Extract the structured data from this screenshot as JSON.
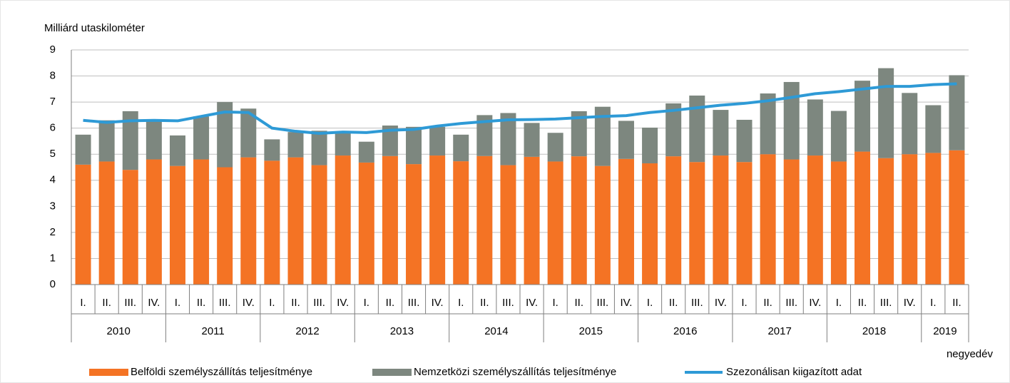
{
  "chart_data": {
    "type": "stacked-bar-line",
    "y_axis_label": "Milliárd utaskilométer",
    "x_axis_label": "negyedév",
    "categories": [
      "I.",
      "II.",
      "III.",
      "IV.",
      "I.",
      "II.",
      "III.",
      "IV.",
      "I.",
      "II.",
      "III.",
      "IV.",
      "I.",
      "II.",
      "III.",
      "IV.",
      "I.",
      "II.",
      "III.",
      "IV.",
      "I.",
      "II.",
      "III.",
      "IV.",
      "I.",
      "II.",
      "III.",
      "IV.",
      "I.",
      "II.",
      "III.",
      "IV.",
      "I.",
      "II.",
      "III.",
      "IV.",
      "I.",
      "II."
    ],
    "years": [
      "2010",
      "2011",
      "2012",
      "2013",
      "2014",
      "2015",
      "2016",
      "2017",
      "2018",
      "2019"
    ],
    "ylim": [
      0,
      9
    ],
    "yticks": [
      0,
      1,
      2,
      3,
      4,
      5,
      6,
      7,
      8,
      9
    ],
    "grid": true,
    "series": [
      {
        "name": "Belföldi személyszállítás teljesítménye",
        "color": "#f47324",
        "kind": "bar",
        "values": [
          4.6,
          4.72,
          4.4,
          4.8,
          4.55,
          4.8,
          4.5,
          4.88,
          4.75,
          4.88,
          4.58,
          4.95,
          4.68,
          4.93,
          4.62,
          4.95,
          4.73,
          4.93,
          4.58,
          4.9,
          4.72,
          4.92,
          4.55,
          4.82,
          4.65,
          4.92,
          4.7,
          4.95,
          4.7,
          5.0,
          4.8,
          4.95,
          4.72,
          5.1,
          4.85,
          5.0,
          5.05,
          5.15
        ]
      },
      {
        "name": "Nemzetközi személyszállítás teljesítménye",
        "color": "#7d877f",
        "kind": "bar",
        "values": [
          1.15,
          1.58,
          2.25,
          1.48,
          1.17,
          1.65,
          2.5,
          1.87,
          0.82,
          0.97,
          1.32,
          0.9,
          0.8,
          1.17,
          1.43,
          1.1,
          1.02,
          1.57,
          2.0,
          1.3,
          1.1,
          1.73,
          2.27,
          1.46,
          1.37,
          2.03,
          2.55,
          1.75,
          1.62,
          2.33,
          2.97,
          2.15,
          1.94,
          2.72,
          3.45,
          2.35,
          1.83,
          2.88
        ]
      },
      {
        "name": "Szezonálisan kiigazított adat",
        "color": "#2e9ad6",
        "kind": "line",
        "values": [
          6.3,
          6.22,
          6.28,
          6.3,
          6.28,
          6.45,
          6.62,
          6.6,
          6.0,
          5.88,
          5.8,
          5.85,
          5.83,
          5.92,
          5.95,
          6.08,
          6.18,
          6.25,
          6.32,
          6.33,
          6.35,
          6.4,
          6.45,
          6.48,
          6.6,
          6.68,
          6.78,
          6.88,
          6.95,
          7.05,
          7.18,
          7.32,
          7.4,
          7.5,
          7.6,
          7.6,
          7.67,
          7.7
        ]
      }
    ]
  }
}
